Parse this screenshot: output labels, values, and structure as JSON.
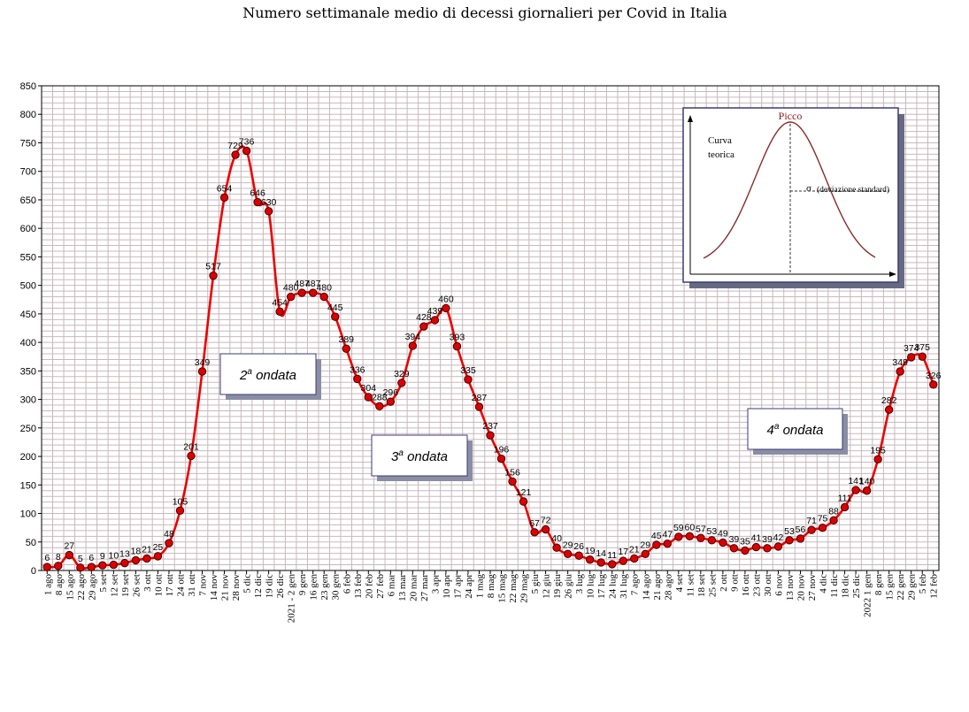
{
  "chart_data": {
    "type": "line",
    "title": "Numero settimanale medio di decessi giornalieri per Covid in Italia",
    "ylim": [
      0,
      850
    ],
    "y_ticks": [
      0,
      50,
      100,
      150,
      200,
      250,
      300,
      350,
      400,
      450,
      500,
      550,
      600,
      650,
      700,
      750,
      800,
      850
    ],
    "grid": true,
    "categories": [
      "1 ago",
      "8 ago",
      "15 ago",
      "22 ago",
      "29 ago",
      "5 set",
      "12 set",
      "19 set",
      "26 set",
      "3 ott",
      "10 ott",
      "17 ott",
      "24 ott",
      "31 ott",
      "7 nov",
      "14 nov",
      "21 nov",
      "28 nov",
      "5 dic",
      "12 dic",
      "19 dic",
      "26 dic",
      "2021 - 2 gen",
      "9 gen",
      "16 gen",
      "23 gen",
      "30 gen",
      "6 feb",
      "13 feb",
      "20 feb",
      "27 feb",
      "6 mar",
      "13 mar",
      "20 mar",
      "27 mar",
      "3 apr",
      "10 apr",
      "17 apr",
      "24 apr",
      "1 mag",
      "8 mag",
      "15 mag",
      "22 mag",
      "29 mag",
      "5 giu",
      "12 giu",
      "19 giu",
      "26 giu",
      "3 lug",
      "10 lug",
      "17 lug",
      "24 lug",
      "31 lug",
      "7 ago",
      "14 ago",
      "21 ago",
      "28 ago",
      "4 set",
      "11 set",
      "18 set",
      "25 set",
      "2 ott",
      "9 ott",
      "16 ott",
      "23 ott",
      "30 ott",
      "6 nov",
      "13 nov",
      "20 nov",
      "27 nov",
      "4 dic",
      "11 dic",
      "18 dic",
      "25 dic",
      "2022 1 gen",
      "8 gen",
      "15 gen",
      "22 gen",
      "29 gen",
      "5 feb",
      "12 feb"
    ],
    "series": [
      {
        "values": [
          6,
          8,
          27,
          5,
          6,
          9,
          10,
          13,
          18,
          21,
          25,
          48,
          105,
          201,
          349,
          517,
          654,
          729,
          736,
          646,
          630,
          454,
          480,
          487,
          487,
          480,
          445,
          389,
          336,
          304,
          288,
          296,
          329,
          394,
          428,
          439,
          460,
          393,
          335,
          287,
          237,
          196,
          156,
          121,
          67,
          72,
          40,
          29,
          26,
          19,
          14,
          11,
          17,
          21,
          29,
          45,
          47,
          59,
          60,
          57,
          53,
          49,
          39,
          35,
          41,
          39,
          42,
          53,
          56,
          71,
          75,
          88,
          111,
          141,
          140,
          195,
          282,
          349,
          374,
          375,
          326
        ],
        "labels": [
          "6",
          "8",
          "27",
          "5",
          "6",
          "9",
          "10",
          "13",
          "18",
          "21",
          "25",
          "48",
          "105",
          "201",
          "349",
          "517",
          "654",
          "729",
          "736",
          "646",
          "630",
          "454",
          "480",
          "487",
          "487",
          "480",
          "445",
          "389",
          "336",
          "304",
          "288",
          "296",
          "329",
          "394",
          "428",
          "439",
          "460",
          "393",
          "335",
          "287",
          "237",
          "196",
          "156",
          "121",
          "67",
          "72",
          "40",
          "29",
          "26",
          "19",
          "14",
          "11",
          "17",
          "21",
          "29",
          "45",
          "47",
          "59",
          "60",
          "57",
          "53",
          "49",
          "39",
          "35",
          "41",
          "39",
          "42",
          "53",
          "56",
          "71",
          "75",
          "88",
          "111",
          "141",
          "140",
          "195",
          "282",
          "349",
          "374",
          "375",
          "326"
        ]
      }
    ],
    "annotations": [
      {
        "base": "2",
        "sup": "a",
        "rest": " ondata"
      },
      {
        "base": "3",
        "sup": "a",
        "rest": " ondata"
      },
      {
        "base": "4",
        "sup": "a",
        "rest": " ondata"
      }
    ],
    "colors": {
      "line": "#ee0000",
      "marker": "#dd0000",
      "grid": "#c8b8bc",
      "inset_curve": "#8b2a2a",
      "inset_border": "#3b3b7a"
    }
  },
  "inset": {
    "peak_label": "Picco",
    "curve_label_line1": "Curva",
    "curve_label_line2": "teorica",
    "sigma_label": "σ",
    "sigma_text": "(deviazione standard)"
  }
}
